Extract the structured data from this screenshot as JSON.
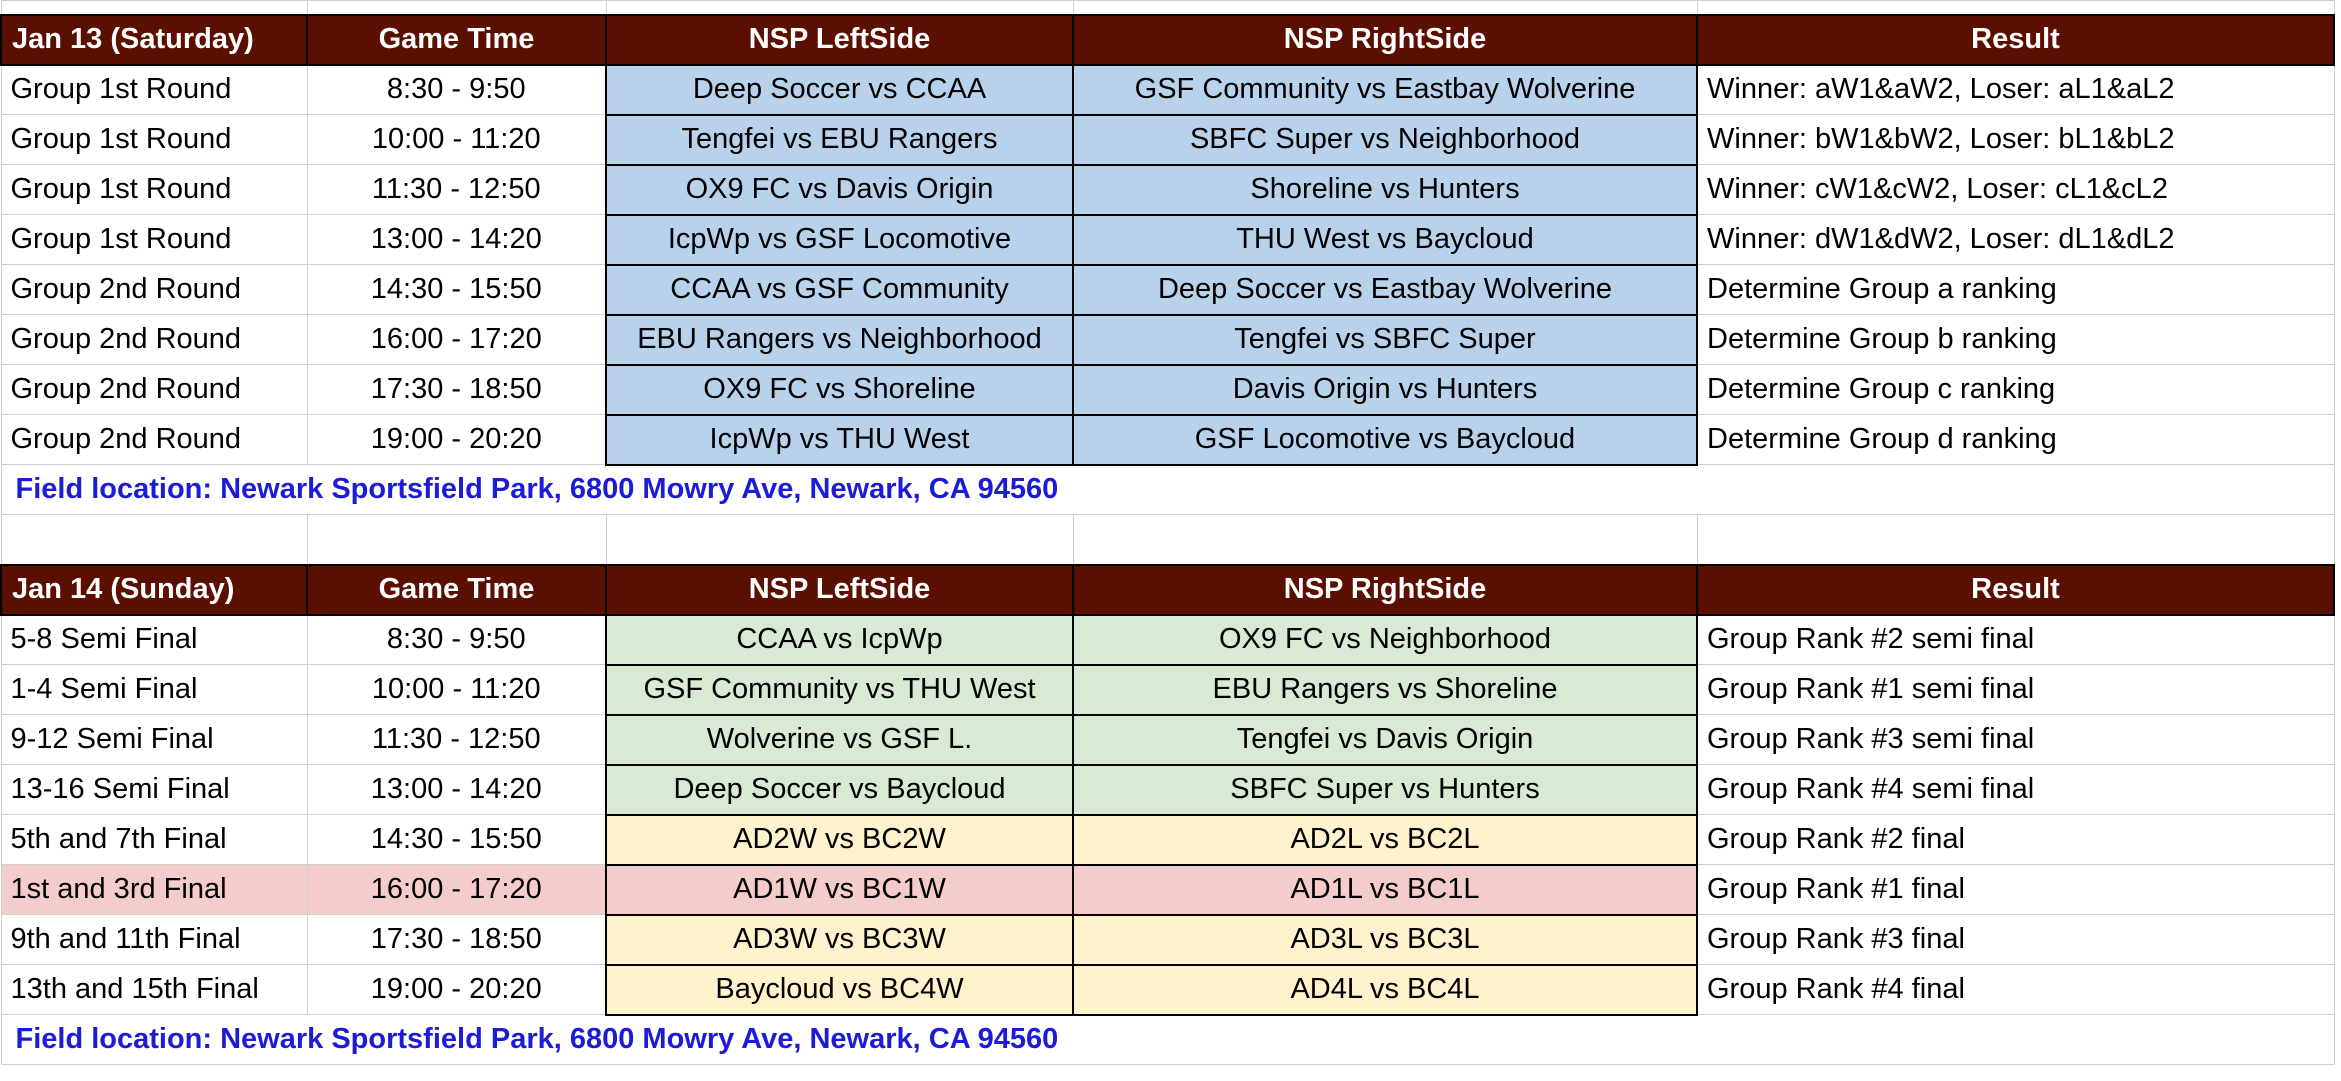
{
  "headers": {
    "sat_day": "Jan 13 (Saturday)",
    "sun_day": "Jan 14 (Sunday)",
    "time": "Game Time",
    "left": "NSP LeftSide",
    "right": "NSP RightSide",
    "result": "Result"
  },
  "saturday": [
    {
      "round": "Group 1st Round",
      "time": "8:30 - 9:50",
      "left": "Deep Soccer vs CCAA",
      "right": "GSF Community vs Eastbay Wolverine",
      "result": "Winner: aW1&aW2, Loser: aL1&aL2"
    },
    {
      "round": "Group 1st Round",
      "time": "10:00 - 11:20",
      "left": "Tengfei vs EBU Rangers",
      "right": "SBFC Super vs Neighborhood",
      "result": "Winner: bW1&bW2, Loser: bL1&bL2"
    },
    {
      "round": "Group 1st Round",
      "time": "11:30 - 12:50",
      "left": "OX9 FC vs Davis Origin",
      "right": "Shoreline vs Hunters",
      "result": "Winner: cW1&cW2, Loser: cL1&cL2"
    },
    {
      "round": "Group 1st Round",
      "time": "13:00 - 14:20",
      "left": "IcpWp vs GSF Locomotive",
      "right": "THU West vs Baycloud",
      "result": "Winner: dW1&dW2, Loser: dL1&dL2"
    },
    {
      "round": "Group 2nd Round",
      "time": "14:30 - 15:50",
      "left": "CCAA vs GSF Community",
      "right": "Deep Soccer vs Eastbay Wolverine",
      "result": "Determine Group a ranking"
    },
    {
      "round": "Group 2nd Round",
      "time": "16:00 - 17:20",
      "left": "EBU Rangers vs Neighborhood",
      "right": "Tengfei vs SBFC Super",
      "result": "Determine Group b ranking"
    },
    {
      "round": "Group 2nd Round",
      "time": "17:30 - 18:50",
      "left": "OX9 FC vs Shoreline",
      "right": "Davis Origin vs Hunters",
      "result": "Determine Group c ranking"
    },
    {
      "round": "Group 2nd Round",
      "time": "19:00 - 20:20",
      "left": "IcpWp vs THU West",
      "right": "GSF Locomotive vs Baycloud",
      "result": "Determine Group d ranking"
    }
  ],
  "sunday": [
    {
      "round": "5-8 Semi Final",
      "time": "8:30 - 9:50",
      "left": "CCAA vs IcpWp",
      "right": "OX9 FC vs Neighborhood",
      "result": "Group Rank #2 semi final"
    },
    {
      "round": "1-4 Semi Final",
      "time": "10:00 - 11:20",
      "left": "GSF Community vs THU West",
      "right": "EBU Rangers vs Shoreline",
      "result": "Group Rank #1 semi final"
    },
    {
      "round": "9-12 Semi Final",
      "time": "11:30 - 12:50",
      "left": "Wolverine vs GSF L.",
      "right": "Tengfei vs Davis Origin",
      "result": "Group Rank #3 semi final"
    },
    {
      "round": "13-16 Semi Final",
      "time": "13:00 - 14:20",
      "left": "Deep Soccer vs Baycloud",
      "right": "SBFC Super vs Hunters",
      "result": "Group Rank #4 semi final"
    },
    {
      "round": "5th and 7th Final",
      "time": "14:30 - 15:50",
      "left": "AD2W vs BC2W",
      "right": "AD2L vs BC2L",
      "result": "Group Rank #2 final"
    },
    {
      "round": "1st and 3rd Final",
      "time": "16:00 - 17:20",
      "left": "AD1W vs BC1W",
      "right": "AD1L vs BC1L",
      "result": "Group Rank #1 final"
    },
    {
      "round": "9th and 11th Final",
      "time": "17:30 - 18:50",
      "left": "AD3W vs BC3W",
      "right": "AD3L vs BC3L",
      "result": "Group Rank #3 final"
    },
    {
      "round": "13th and 15th Final",
      "time": "19:00 - 20:20",
      "left": "Baycloud vs BC4W",
      "right": "AD4L vs BC4L",
      "result": "Group Rank #4 final"
    }
  ],
  "location": "Field location: Newark Sportsfield Park, 6800 Mowry Ave, Newark, CA 94560",
  "colors": {
    "header_bg": "#5b0f00",
    "group_match_bg": "#b9d2ec",
    "semi_final_bg": "#d8e9d4",
    "final_bg": "#fff2cc",
    "championship_bg": "#f4cccc",
    "location_text": "#1b1bd8"
  }
}
